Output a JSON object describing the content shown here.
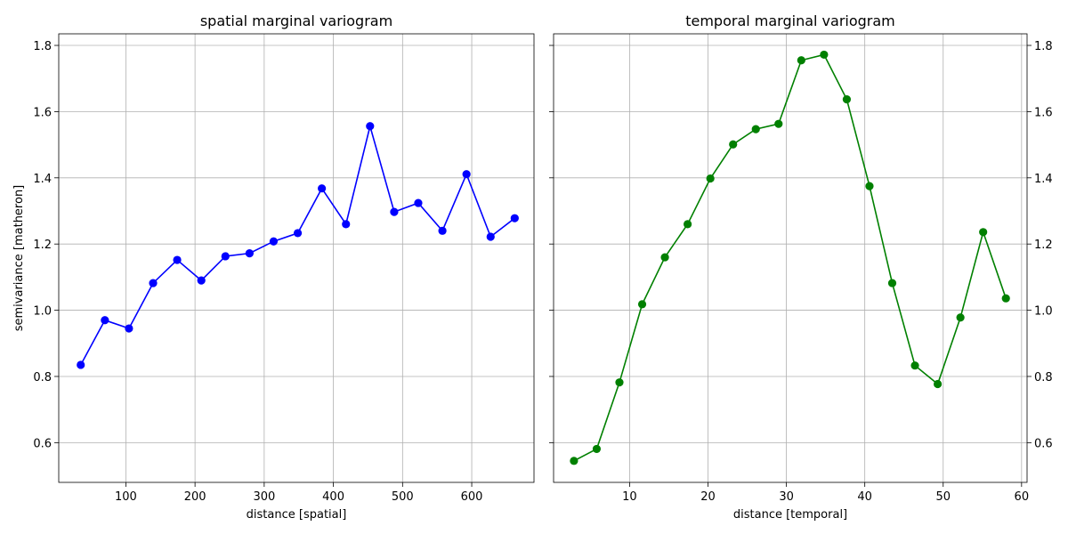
{
  "chart_data": [
    {
      "type": "line",
      "title": "spatial marginal variogram",
      "xlabel": "distance [spatial]",
      "ylabel": "semivariance [matheron]",
      "xlim": [
        3,
        690
      ],
      "ylim": [
        0.48,
        1.835
      ],
      "xticks": [
        100,
        200,
        300,
        400,
        500,
        600
      ],
      "yticks": [
        0.6,
        0.8,
        1.0,
        1.2,
        1.4,
        1.6,
        1.8
      ],
      "ytick_labels": [
        "0.6",
        "0.8",
        "1.0",
        "1.2",
        "1.4",
        "1.6",
        "1.8"
      ],
      "y_axis_side": "left",
      "grid": true,
      "color": "#0000ff",
      "series": [
        {
          "x": [
            34.8,
            69.7,
            104.5,
            139.4,
            174.2,
            209.1,
            243.9,
            278.8,
            313.6,
            348.5,
            383.3,
            418.2,
            453.0,
            487.9,
            522.7,
            557.6,
            592.4,
            627.3,
            662.1
          ],
          "values": [
            0.835,
            0.97,
            0.945,
            1.082,
            1.152,
            1.09,
            1.163,
            1.172,
            1.208,
            1.233,
            1.368,
            1.26,
            1.556,
            1.297,
            1.324,
            1.24,
            1.411,
            1.222,
            1.278
          ]
        }
      ]
    },
    {
      "type": "line",
      "title": "temporal marginal variogram",
      "xlabel": "distance [temporal]",
      "ylabel": "",
      "xlim": [
        0.3,
        60.7
      ],
      "ylim": [
        0.48,
        1.835
      ],
      "xticks": [
        10,
        20,
        30,
        40,
        50,
        60
      ],
      "yticks": [
        0.6,
        0.8,
        1.0,
        1.2,
        1.4,
        1.6,
        1.8
      ],
      "ytick_labels": [
        "0.6",
        "0.8",
        "1.0",
        "1.2",
        "1.4",
        "1.6",
        "1.8"
      ],
      "y_axis_side": "right",
      "grid": true,
      "color": "#008000",
      "series": [
        {
          "x": [
            2.9,
            5.8,
            8.7,
            11.6,
            14.5,
            17.4,
            20.3,
            23.2,
            26.1,
            29.0,
            31.9,
            34.8,
            37.7,
            40.6,
            43.5,
            46.4,
            49.3,
            52.2,
            55.1,
            58.0
          ],
          "values": [
            0.545,
            0.581,
            0.782,
            1.018,
            1.16,
            1.26,
            1.398,
            1.501,
            1.547,
            1.563,
            1.755,
            1.772,
            1.637,
            1.375,
            1.082,
            0.833,
            0.777,
            0.978,
            1.236,
            1.036
          ]
        }
      ]
    }
  ]
}
